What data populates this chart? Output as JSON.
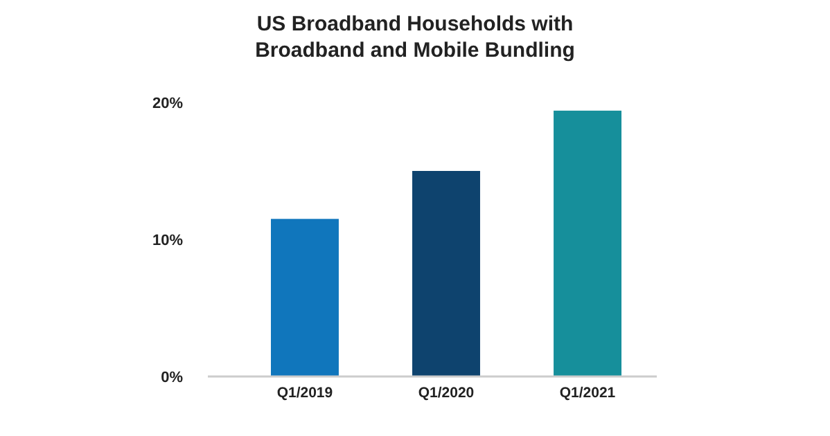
{
  "chart_data": {
    "type": "bar",
    "title": "US Broadband Households with Broadband and Mobile Bundling",
    "categories": [
      "Q1/2019",
      "Q1/2020",
      "Q1/2021"
    ],
    "values": [
      11.5,
      15,
      19.4
    ],
    "colors": [
      "#1076bc",
      "#0e436e",
      "#168f9b"
    ],
    "ylim": [
      0,
      20
    ],
    "yticks": [
      {
        "value": 0,
        "label": "0%"
      },
      {
        "value": 10,
        "label": "10%"
      },
      {
        "value": 20,
        "label": "20%"
      }
    ],
    "grid": false
  }
}
